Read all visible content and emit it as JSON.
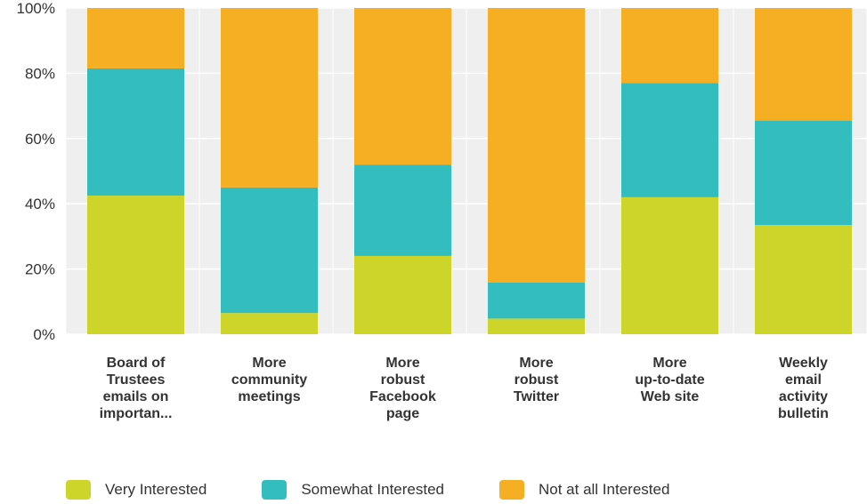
{
  "chart_data": {
    "type": "bar",
    "stacked": true,
    "categories": [
      "Board of Trustees emails on importan...",
      "More community meetings",
      "More robust Facebook page",
      "More robust Twitter",
      "More up-to-date Web site",
      "Weekly email activity bulletin"
    ],
    "category_lines": [
      [
        "Board of",
        "Trustees",
        "emails on",
        "importan..."
      ],
      [
        "More",
        "community",
        "meetings"
      ],
      [
        "More",
        "robust",
        "Facebook",
        "page"
      ],
      [
        "More",
        "robust",
        "Twitter"
      ],
      [
        "More",
        "up-to-date",
        "Web site"
      ],
      [
        "Weekly",
        "email",
        "activity",
        "bulletin"
      ]
    ],
    "series": [
      {
        "name": "Very Interested",
        "color": "#cdd52b",
        "values": [
          42.5,
          6.5,
          24,
          4.8,
          42,
          33.5
        ]
      },
      {
        "name": "Somewhat Interested",
        "color": "#33bdbf",
        "values": [
          39,
          38.5,
          28,
          11,
          35,
          32
        ]
      },
      {
        "name": "Not at all Interested",
        "color": "#f6af22",
        "values": [
          18.5,
          55,
          48,
          84.2,
          23,
          34.5
        ]
      }
    ],
    "yticks": [
      "0%",
      "20%",
      "40%",
      "60%",
      "80%",
      "100%"
    ],
    "ylim": [
      0,
      100
    ],
    "grid": true,
    "legend_position": "bottom-left"
  }
}
